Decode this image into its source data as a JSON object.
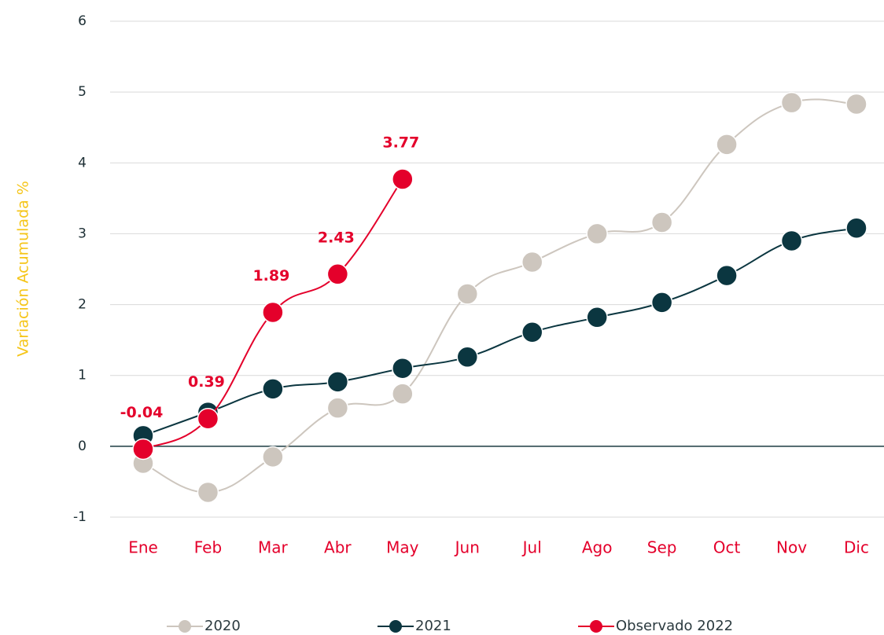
{
  "chart_data": {
    "type": "line",
    "y_label": "Variación Acumulada %",
    "categories": [
      "Ene",
      "Feb",
      "Mar",
      "Abr",
      "May",
      "Jun",
      "Jul",
      "Ago",
      "Sep",
      "Oct",
      "Nov",
      "Dic"
    ],
    "series": [
      {
        "name": "2020",
        "color": "#cdc6be",
        "values": [
          -0.24,
          -0.65,
          -0.15,
          0.54,
          0.74,
          2.15,
          2.6,
          3.0,
          3.16,
          4.26,
          4.85,
          4.83
        ]
      },
      {
        "name": "2021",
        "color": "#0b3640",
        "values": [
          0.15,
          0.48,
          0.81,
          0.91,
          1.1,
          1.26,
          1.61,
          1.82,
          2.03,
          2.41,
          2.9,
          3.08
        ]
      },
      {
        "name": "Observado 2022",
        "color": "#e4002b",
        "values": [
          -0.04,
          0.39,
          1.89,
          2.43,
          3.77,
          null,
          null,
          null,
          null,
          null,
          null,
          null
        ],
        "data_labels": true
      }
    ],
    "ylim": [
      -1,
      6
    ],
    "yticks": [
      -1,
      0,
      1,
      2,
      3,
      4,
      5,
      6
    ],
    "grid": true,
    "legend": "bottom"
  }
}
